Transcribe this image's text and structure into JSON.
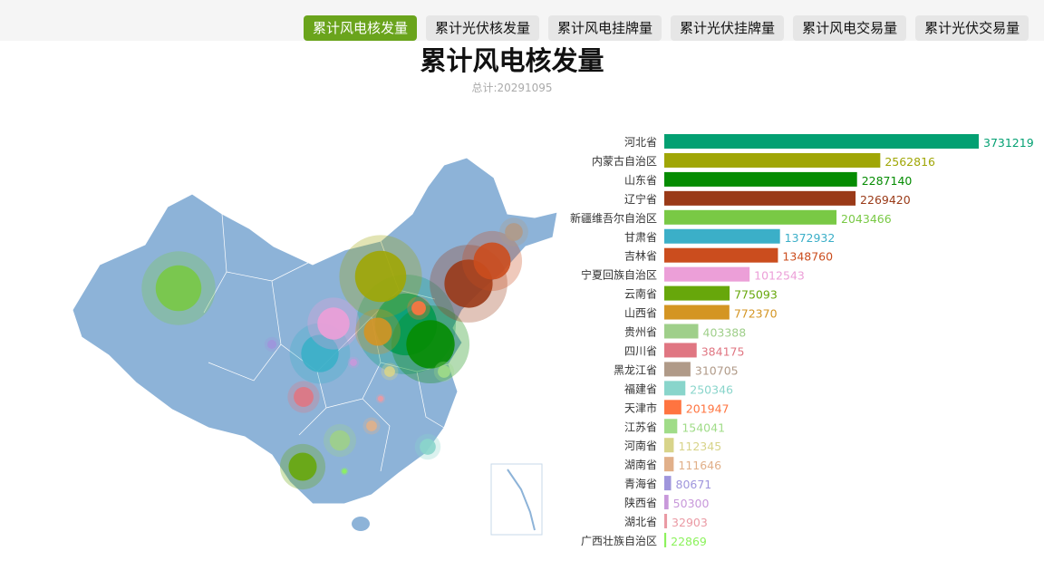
{
  "tabs": [
    "累计风电核发量",
    "累计光伏核发量",
    "累计风电挂牌量",
    "累计光伏挂牌量",
    "累计风电交易量",
    "累计光伏交易量"
  ],
  "active_tab": 0,
  "title": "累计风电核发量",
  "subtitle": "总计:20291095",
  "chart_data": {
    "type": "bar",
    "orientation": "horizontal",
    "companion": "china-bubble-map",
    "title": "累计风电核发量",
    "categories": [
      "河北省",
      "内蒙古自治区",
      "山东省",
      "辽宁省",
      "新疆维吾尔自治区",
      "甘肃省",
      "吉林省",
      "宁夏回族自治区",
      "云南省",
      "山西省",
      "贵州省",
      "四川省",
      "黑龙江省",
      "福建省",
      "天津市",
      "江苏省",
      "河南省",
      "湖南省",
      "青海省",
      "陕西省",
      "湖北省",
      "广西壮族自治区"
    ],
    "values": [
      3731219,
      2562816,
      2287140,
      2269420,
      2043466,
      1372932,
      1348760,
      1012543,
      775093,
      772370,
      403388,
      384175,
      310705,
      250346,
      201947,
      154041,
      112345,
      111646,
      80671,
      50300,
      32903,
      22869
    ],
    "colors": [
      "#03a072",
      "#a0a606",
      "#058c02",
      "#9a3a18",
      "#79c945",
      "#3bafc8",
      "#cb4d1e",
      "#ec9fd8",
      "#67a70b",
      "#d49523",
      "#9fcf8a",
      "#e07682",
      "#b09a88",
      "#89d5cb",
      "#ff7440",
      "#a0dc88",
      "#d8d48a",
      "#e1b08a",
      "#9f95dc",
      "#c898da",
      "#ea9aa4",
      "#8cf25c"
    ]
  }
}
